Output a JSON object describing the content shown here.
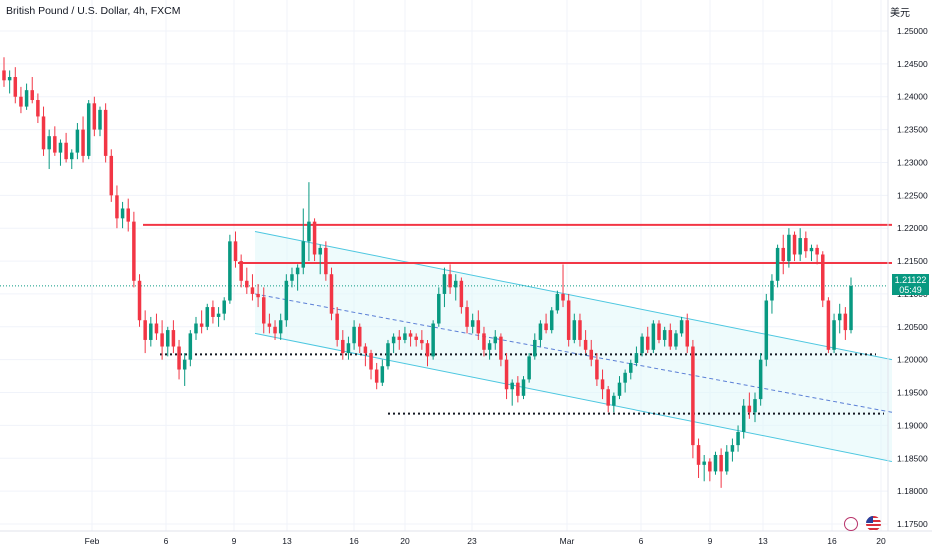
{
  "header": {
    "title": "British Pound / U.S. Dollar, 4h, FXCM",
    "currency_label": "美元"
  },
  "price_tag": {
    "price": "1.21122",
    "countdown": "05:49"
  },
  "icons": {
    "bolt": "lightning-icon",
    "flag": "us-flag-icon"
  },
  "chart_data": {
    "type": "candlestick",
    "y_axis": {
      "range": [
        1.172,
        1.256
      ],
      "ticks": [
        "1.25000",
        "1.24500",
        "1.24000",
        "1.23500",
        "1.23000",
        "1.22500",
        "1.22000",
        "1.21500",
        "1.21000",
        "1.20500",
        "1.20000",
        "1.19500",
        "1.19000",
        "1.18500",
        "1.18000",
        "1.17500"
      ],
      "tick_values": [
        1.25,
        1.245,
        1.24,
        1.235,
        1.23,
        1.225,
        1.22,
        1.215,
        1.21,
        1.205,
        1.2,
        1.195,
        1.19,
        1.185,
        1.18,
        1.175
      ]
    },
    "x_axis": {
      "ticks": [
        "Feb",
        "6",
        "9",
        "13",
        "16",
        "20",
        "23",
        "Mar",
        "6",
        "9",
        "13",
        "16",
        "20"
      ]
    },
    "colors": {
      "up": "#089981",
      "down": "#f23645",
      "resistance": "#f23645",
      "channel": "#4dc7e0",
      "support": "#131722"
    },
    "current_price": 1.21122,
    "annotations": {
      "resistance_lines": [
        1.2205,
        1.2147
      ],
      "support_lines": [
        1.2008,
        1.1918
      ],
      "channel": {
        "upper": [
          [
            1.2195,
            1.2
          ]
        ],
        "middle": [
          [
            1.21,
            1.192
          ]
        ],
        "lower": [
          [
            1.204,
            1.1845
          ]
        ]
      }
    },
    "candles": [
      [
        1.244,
        1.246,
        1.2415,
        1.2425
      ],
      [
        1.2425,
        1.244,
        1.2405,
        1.243
      ],
      [
        1.243,
        1.2445,
        1.239,
        1.24
      ],
      [
        1.24,
        1.2415,
        1.2375,
        1.2385
      ],
      [
        1.2385,
        1.242,
        1.238,
        1.241
      ],
      [
        1.241,
        1.243,
        1.239,
        1.2395
      ],
      [
        1.2395,
        1.2405,
        1.236,
        1.237
      ],
      [
        1.237,
        1.2385,
        1.231,
        1.232
      ],
      [
        1.232,
        1.235,
        1.229,
        1.234
      ],
      [
        1.234,
        1.2355,
        1.231,
        1.2315
      ],
      [
        1.2315,
        1.2335,
        1.2295,
        1.233
      ],
      [
        1.233,
        1.2345,
        1.23,
        1.2305
      ],
      [
        1.2305,
        1.232,
        1.229,
        1.2315
      ],
      [
        1.2315,
        1.236,
        1.2305,
        1.235
      ],
      [
        1.235,
        1.237,
        1.23,
        1.231
      ],
      [
        1.231,
        1.2395,
        1.2305,
        1.239
      ],
      [
        1.239,
        1.24,
        1.234,
        1.235
      ],
      [
        1.235,
        1.2385,
        1.234,
        1.238
      ],
      [
        1.238,
        1.239,
        1.23,
        1.231
      ],
      [
        1.231,
        1.232,
        1.224,
        1.225
      ],
      [
        1.225,
        1.2265,
        1.22,
        1.2215
      ],
      [
        1.2215,
        1.224,
        1.22,
        1.223
      ],
      [
        1.223,
        1.2245,
        1.2195,
        1.221
      ],
      [
        1.221,
        1.2225,
        1.211,
        1.212
      ],
      [
        1.212,
        1.213,
        1.205,
        1.206
      ],
      [
        1.206,
        1.2075,
        1.201,
        1.203
      ],
      [
        1.203,
        1.2065,
        1.202,
        1.2055
      ],
      [
        1.2055,
        1.207,
        1.203,
        1.204
      ],
      [
        1.204,
        1.206,
        1.2,
        1.202
      ],
      [
        1.202,
        1.205,
        1.2005,
        1.2045
      ],
      [
        1.2045,
        1.206,
        1.201,
        1.202
      ],
      [
        1.202,
        1.203,
        1.197,
        1.1985
      ],
      [
        1.1985,
        1.201,
        1.196,
        1.2
      ],
      [
        1.2,
        1.2045,
        1.199,
        1.204
      ],
      [
        1.204,
        1.2065,
        1.203,
        1.2055
      ],
      [
        1.2055,
        1.2075,
        1.204,
        1.205
      ],
      [
        1.205,
        1.2085,
        1.2045,
        1.208
      ],
      [
        1.208,
        1.209,
        1.2055,
        1.2065
      ],
      [
        1.2065,
        1.208,
        1.205,
        1.207
      ],
      [
        1.207,
        1.2095,
        1.206,
        1.209
      ],
      [
        1.209,
        1.219,
        1.2085,
        1.218
      ],
      [
        1.218,
        1.2195,
        1.214,
        1.215
      ],
      [
        1.215,
        1.216,
        1.211,
        1.212
      ],
      [
        1.212,
        1.214,
        1.21,
        1.211
      ],
      [
        1.211,
        1.213,
        1.209,
        1.21
      ],
      [
        1.21,
        1.2115,
        1.208,
        1.2095
      ],
      [
        1.2095,
        1.211,
        1.204,
        1.2055
      ],
      [
        1.2055,
        1.207,
        1.204,
        1.205
      ],
      [
        1.205,
        1.206,
        1.203,
        1.204
      ],
      [
        1.204,
        1.207,
        1.203,
        1.206
      ],
      [
        1.206,
        1.213,
        1.205,
        1.212
      ],
      [
        1.212,
        1.214,
        1.211,
        1.213
      ],
      [
        1.213,
        1.2145,
        1.2105,
        1.214
      ],
      [
        1.214,
        1.223,
        1.213,
        1.218
      ],
      [
        1.218,
        1.227,
        1.215,
        1.221
      ],
      [
        1.221,
        1.2215,
        1.215,
        1.216
      ],
      [
        1.216,
        1.2175,
        1.213,
        1.217
      ],
      [
        1.217,
        1.218,
        1.212,
        1.213
      ],
      [
        1.213,
        1.214,
        1.206,
        1.207
      ],
      [
        1.207,
        1.208,
        1.202,
        1.203
      ],
      [
        1.203,
        1.2045,
        1.2,
        1.201
      ],
      [
        1.201,
        1.2035,
        1.2,
        1.2025
      ],
      [
        1.2025,
        1.206,
        1.2015,
        1.205
      ],
      [
        1.205,
        1.2055,
        1.201,
        1.202
      ],
      [
        1.202,
        1.2025,
        1.199,
        1.201
      ],
      [
        1.201,
        1.2015,
        1.197,
        1.1985
      ],
      [
        1.1985,
        1.1995,
        1.1955,
        1.1965
      ],
      [
        1.1965,
        1.2,
        1.196,
        1.199
      ],
      [
        1.199,
        1.203,
        1.1985,
        1.2025
      ],
      [
        1.2025,
        1.204,
        1.201,
        1.2035
      ],
      [
        1.2035,
        1.2045,
        1.2015,
        1.203
      ],
      [
        1.203,
        1.205,
        1.2025,
        1.204
      ],
      [
        1.204,
        1.2045,
        1.202,
        1.2035
      ],
      [
        1.2035,
        1.204,
        1.202,
        1.203
      ],
      [
        1.203,
        1.2045,
        1.2015,
        1.2025
      ],
      [
        1.2025,
        1.203,
        1.199,
        1.2005
      ],
      [
        1.2005,
        1.206,
        1.2,
        1.2055
      ],
      [
        1.2055,
        1.211,
        1.205,
        1.21
      ],
      [
        1.21,
        1.214,
        1.208,
        1.213
      ],
      [
        1.213,
        1.2145,
        1.21,
        1.211
      ],
      [
        1.211,
        1.213,
        1.209,
        1.212
      ],
      [
        1.212,
        1.2125,
        1.207,
        1.208
      ],
      [
        1.208,
        1.209,
        1.204,
        1.205
      ],
      [
        1.205,
        1.207,
        1.204,
        1.206
      ],
      [
        1.206,
        1.2075,
        1.203,
        1.204
      ],
      [
        1.204,
        1.205,
        1.2005,
        1.2015
      ],
      [
        1.2015,
        1.203,
        1.2,
        1.2025
      ],
      [
        1.2025,
        1.2045,
        1.2015,
        1.2035
      ],
      [
        1.2035,
        1.204,
        1.199,
        1.2
      ],
      [
        1.2,
        1.201,
        1.194,
        1.1955
      ],
      [
        1.1955,
        1.197,
        1.193,
        1.1965
      ],
      [
        1.1965,
        1.1975,
        1.1935,
        1.1945
      ],
      [
        1.1945,
        1.1975,
        1.194,
        1.197
      ],
      [
        1.197,
        1.201,
        1.1965,
        1.2005
      ],
      [
        1.2005,
        1.204,
        1.2,
        1.203
      ],
      [
        1.203,
        1.206,
        1.202,
        1.2055
      ],
      [
        1.2055,
        1.207,
        1.204,
        1.2045
      ],
      [
        1.2045,
        1.208,
        1.204,
        1.2075
      ],
      [
        1.2075,
        1.2105,
        1.207,
        1.21
      ],
      [
        1.21,
        1.2145,
        1.208,
        1.209
      ],
      [
        1.209,
        1.21,
        1.202,
        1.203
      ],
      [
        1.203,
        1.207,
        1.2025,
        1.206
      ],
      [
        1.206,
        1.207,
        1.202,
        1.203
      ],
      [
        1.203,
        1.2045,
        1.201,
        1.2015
      ],
      [
        1.2015,
        1.203,
        1.199,
        1.2
      ],
      [
        1.2,
        1.201,
        1.196,
        1.197
      ],
      [
        1.197,
        1.1985,
        1.194,
        1.1955
      ],
      [
        1.1955,
        1.196,
        1.192,
        1.193
      ],
      [
        1.193,
        1.195,
        1.192,
        1.1945
      ],
      [
        1.1945,
        1.1975,
        1.194,
        1.1965
      ],
      [
        1.1965,
        1.1985,
        1.195,
        1.198
      ],
      [
        1.198,
        1.2,
        1.197,
        1.1995
      ],
      [
        1.1995,
        1.202,
        1.199,
        1.201
      ],
      [
        1.201,
        1.204,
        1.2005,
        1.2035
      ],
      [
        1.2035,
        1.205,
        1.201,
        1.2015
      ],
      [
        1.2015,
        1.206,
        1.201,
        1.2055
      ],
      [
        1.2055,
        1.206,
        1.2025,
        1.203
      ],
      [
        1.203,
        1.205,
        1.202,
        1.2045
      ],
      [
        1.2045,
        1.2055,
        1.2015,
        1.202
      ],
      [
        1.202,
        1.2045,
        1.2015,
        1.204
      ],
      [
        1.204,
        1.2065,
        1.2035,
        1.206
      ],
      [
        1.206,
        1.207,
        1.201,
        1.202
      ],
      [
        1.202,
        1.203,
        1.185,
        1.187
      ],
      [
        1.187,
        1.188,
        1.182,
        1.184
      ],
      [
        1.184,
        1.1855,
        1.1815,
        1.1845
      ],
      [
        1.1845,
        1.185,
        1.1815,
        1.183
      ],
      [
        1.183,
        1.186,
        1.1825,
        1.1855
      ],
      [
        1.1855,
        1.1865,
        1.1805,
        1.183
      ],
      [
        1.183,
        1.187,
        1.1825,
        1.186
      ],
      [
        1.186,
        1.188,
        1.1845,
        1.187
      ],
      [
        1.187,
        1.19,
        1.186,
        1.189
      ],
      [
        1.189,
        1.194,
        1.188,
        1.193
      ],
      [
        1.193,
        1.195,
        1.191,
        1.192
      ],
      [
        1.192,
        1.195,
        1.1905,
        1.194
      ],
      [
        1.194,
        1.201,
        1.193,
        1.2
      ],
      [
        1.2,
        1.21,
        1.199,
        1.209
      ],
      [
        1.209,
        1.213,
        1.207,
        1.212
      ],
      [
        1.212,
        1.2175,
        1.211,
        1.217
      ],
      [
        1.217,
        1.219,
        1.213,
        1.215
      ],
      [
        1.215,
        1.22,
        1.214,
        1.219
      ],
      [
        1.219,
        1.2195,
        1.215,
        1.216
      ],
      [
        1.216,
        1.22,
        1.215,
        1.2185
      ],
      [
        1.2185,
        1.2195,
        1.2155,
        1.2165
      ],
      [
        1.2165,
        1.2175,
        1.215,
        1.217
      ],
      [
        1.217,
        1.2175,
        1.2145,
        1.216
      ],
      [
        1.216,
        1.2165,
        1.208,
        1.209
      ],
      [
        1.209,
        1.2095,
        1.201,
        1.2015
      ],
      [
        1.2015,
        1.207,
        1.201,
        1.206
      ],
      [
        1.206,
        1.2085,
        1.204,
        1.207
      ],
      [
        1.207,
        1.208,
        1.203,
        1.2045
      ],
      [
        1.2045,
        1.2125,
        1.204,
        1.2112
      ]
    ]
  }
}
